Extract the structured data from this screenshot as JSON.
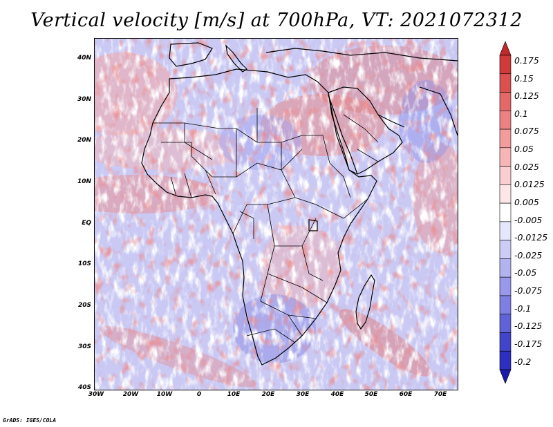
{
  "title": "Vertical velocity [m/s] at 700hPa, VT: 2021072312",
  "credit": "GrADS: IGES/COLA",
  "map": {
    "region": "Africa and Middle East",
    "lat_labels": [
      "40N",
      "30N",
      "20N",
      "10N",
      "EQ",
      "10S",
      "20S",
      "30S",
      "40S"
    ],
    "lon_labels": [
      "30W",
      "20W",
      "10W",
      "0",
      "10E",
      "20E",
      "30E",
      "40E",
      "50E",
      "60E",
      "70E"
    ],
    "lat_range": [
      -40,
      45
    ],
    "lon_range": [
      -30,
      75
    ]
  },
  "colorbar": {
    "labels": [
      "0.175",
      "0.15",
      "0.125",
      "0.1",
      "0.075",
      "0.05",
      "0.025",
      "0.0125",
      "0.005",
      "-0.005",
      "-0.0125",
      "-0.025",
      "-0.05",
      "-0.075",
      "-0.1",
      "-0.125",
      "-0.175",
      "-0.2"
    ],
    "colors": [
      "#c02a2a",
      "#d03a3a",
      "#dc5050",
      "#e46868",
      "#ec8282",
      "#f29c9c",
      "#f6b6b6",
      "#facece",
      "#fde6e6",
      "#ffffff",
      "#e6e6fc",
      "#cccdf6",
      "#b2b3f0",
      "#9899ea",
      "#7e7fe2",
      "#6062d8",
      "#4245cc",
      "#2c2fc0",
      "#1a1aa8"
    ]
  }
}
